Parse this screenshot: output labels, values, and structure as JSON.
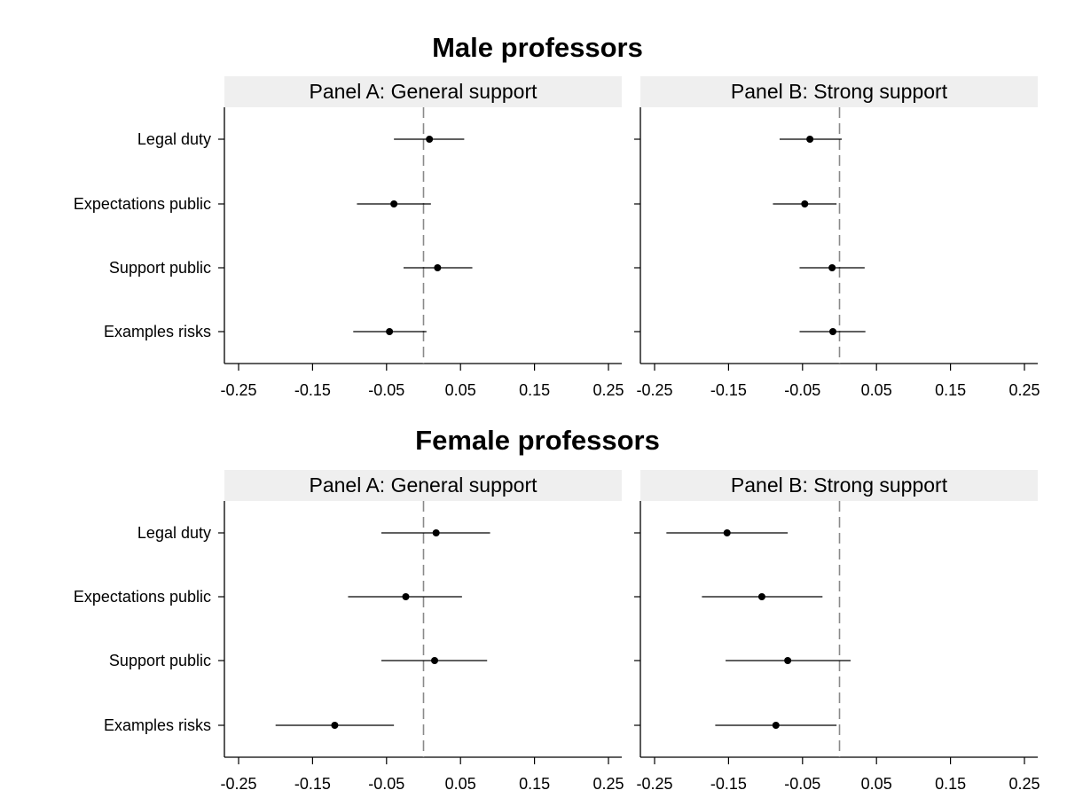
{
  "chart_data": [
    {
      "type": "scatter",
      "subtype": "coefficient-plot",
      "title": "Male professors",
      "categories": [
        "Legal duty",
        "Expectations public",
        "Support public",
        "Examples risks"
      ],
      "xticks": [
        "-0.25",
        "-0.15",
        "-0.05",
        "0.05",
        "0.15",
        "0.25"
      ],
      "xlim": [
        -0.27,
        0.27
      ],
      "reference_line": 0,
      "grid": false,
      "panels": [
        {
          "label": "Panel A: General support",
          "points": [
            {
              "category": "Legal duty",
              "estimate": 0.008,
              "ci_low": -0.04,
              "ci_high": 0.055
            },
            {
              "category": "Expectations public",
              "estimate": -0.04,
              "ci_low": -0.09,
              "ci_high": 0.01
            },
            {
              "category": "Support public",
              "estimate": 0.019,
              "ci_low": -0.027,
              "ci_high": 0.066
            },
            {
              "category": "Examples risks",
              "estimate": -0.046,
              "ci_low": -0.095,
              "ci_high": 0.004
            }
          ]
        },
        {
          "label": "Panel B: Strong support",
          "points": [
            {
              "category": "Legal duty",
              "estimate": -0.04,
              "ci_low": -0.081,
              "ci_high": 0.003
            },
            {
              "category": "Expectations public",
              "estimate": -0.047,
              "ci_low": -0.09,
              "ci_high": -0.004
            },
            {
              "category": "Support public",
              "estimate": -0.01,
              "ci_low": -0.054,
              "ci_high": 0.034
            },
            {
              "category": "Examples risks",
              "estimate": -0.009,
              "ci_low": -0.054,
              "ci_high": 0.035
            }
          ]
        }
      ]
    },
    {
      "type": "scatter",
      "subtype": "coefficient-plot",
      "title": "Female professors",
      "categories": [
        "Legal duty",
        "Expectations public",
        "Support public",
        "Examples risks"
      ],
      "xticks": [
        "-0.25",
        "-0.15",
        "-0.05",
        "0.05",
        "0.15",
        "0.25"
      ],
      "xlim": [
        -0.27,
        0.27
      ],
      "reference_line": 0,
      "grid": false,
      "panels": [
        {
          "label": "Panel A: General support",
          "points": [
            {
              "category": "Legal duty",
              "estimate": 0.017,
              "ci_low": -0.057,
              "ci_high": 0.09
            },
            {
              "category": "Expectations public",
              "estimate": -0.024,
              "ci_low": -0.102,
              "ci_high": 0.052
            },
            {
              "category": "Support public",
              "estimate": 0.015,
              "ci_low": -0.057,
              "ci_high": 0.086
            },
            {
              "category": "Examples risks",
              "estimate": -0.12,
              "ci_low": -0.2,
              "ci_high": -0.04
            }
          ]
        },
        {
          "label": "Panel B: Strong support",
          "points": [
            {
              "category": "Legal duty",
              "estimate": -0.152,
              "ci_low": -0.234,
              "ci_high": -0.07
            },
            {
              "category": "Expectations public",
              "estimate": -0.105,
              "ci_low": -0.186,
              "ci_high": -0.023
            },
            {
              "category": "Support public",
              "estimate": -0.07,
              "ci_low": -0.154,
              "ci_high": 0.015
            },
            {
              "category": "Examples risks",
              "estimate": -0.086,
              "ci_low": -0.168,
              "ci_high": -0.004
            }
          ]
        }
      ]
    }
  ]
}
